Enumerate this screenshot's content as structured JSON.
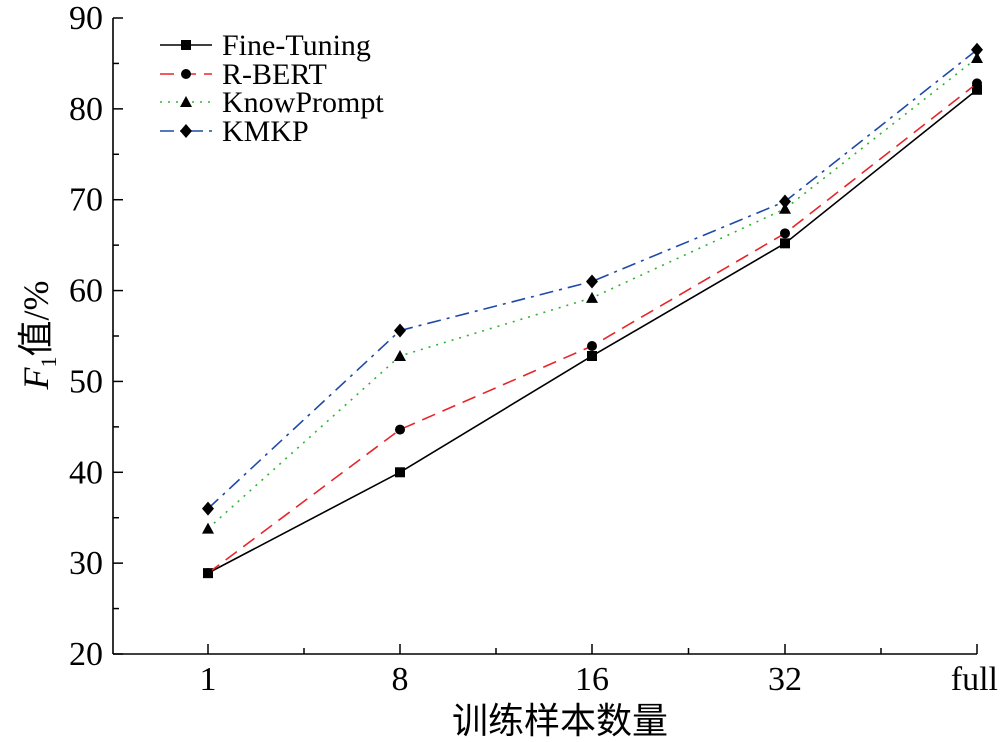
{
  "chart_data": {
    "type": "line",
    "xlabel": "训练样本数量",
    "ylabel_main": "F",
    "ylabel_sub": "1",
    "ylabel_rest": "值/%",
    "categories": [
      "1",
      "8",
      "16",
      "32",
      "full"
    ],
    "ylim": [
      20,
      90
    ],
    "yticks": [
      "20",
      "30",
      "40",
      "50",
      "60",
      "70",
      "80",
      "90"
    ],
    "grid": false,
    "legend_position": "top-left",
    "series": [
      {
        "name": "Fine-Tuning",
        "values": [
          28.9,
          40.0,
          52.8,
          65.2,
          82.1
        ],
        "color": "#000000",
        "dash": "solid",
        "marker": "square"
      },
      {
        "name": "R-BERT",
        "values": [
          28.9,
          44.7,
          53.9,
          66.3,
          82.8
        ],
        "color": "#e8262a",
        "dash": "dashed",
        "marker": "circle"
      },
      {
        "name": "KnowPrompt",
        "values": [
          33.8,
          52.8,
          59.2,
          69.0,
          85.6
        ],
        "color": "#2db52d",
        "dash": "dotted",
        "marker": "triangle"
      },
      {
        "name": "KMKP",
        "values": [
          36.0,
          55.6,
          61.0,
          69.8,
          86.5
        ],
        "color": "#1f4aa8",
        "dash": "dashdot",
        "marker": "diamond"
      }
    ]
  }
}
